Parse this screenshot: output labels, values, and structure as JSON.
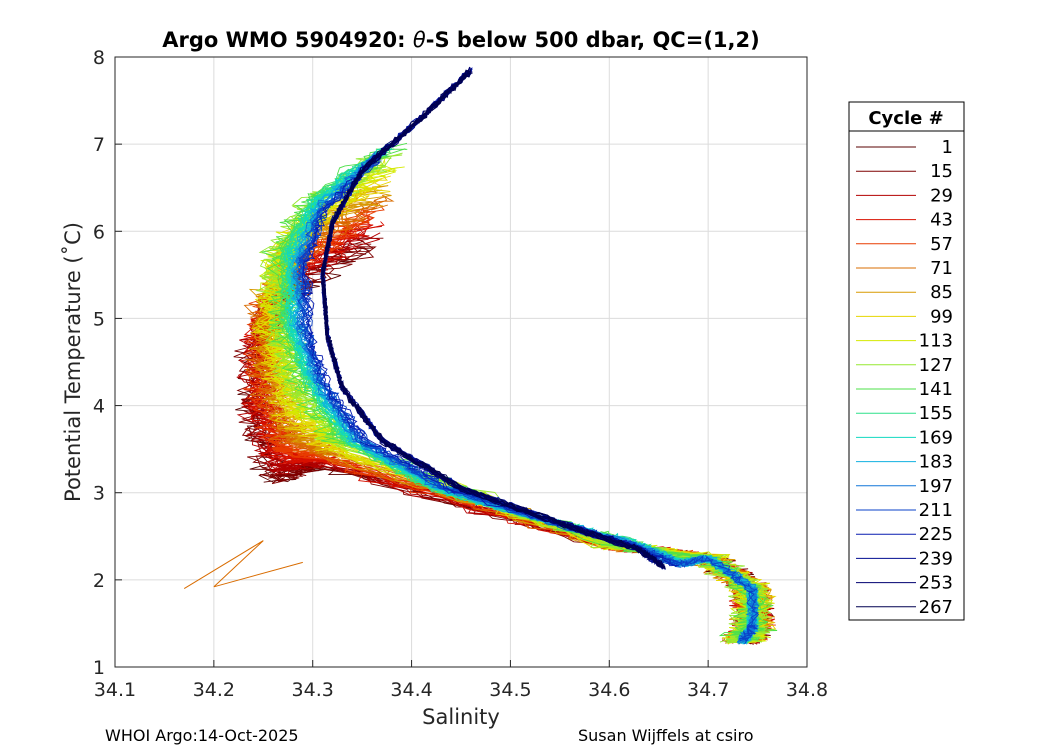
{
  "chart_data": {
    "type": "line",
    "title_prefix": "Argo WMO 5904920: ",
    "title_symbol": "θ",
    "title_suffix": "-S below 500 dbar,  QC=(1,2)",
    "xlabel": "Salinity",
    "ylabel": "Potential Temperature (˚C)",
    "xlim": [
      34.1,
      34.8
    ],
    "ylim": [
      1,
      8
    ],
    "xticks": [
      "34.1",
      "34.2",
      "34.3",
      "34.4",
      "34.5",
      "34.6",
      "34.7",
      "34.8"
    ],
    "yticks": [
      "1",
      "2",
      "3",
      "4",
      "5",
      "6",
      "7",
      "8"
    ],
    "grid": true,
    "legend": {
      "title": "Cycle #",
      "placement": "outside-right",
      "entries": [
        "1",
        "15",
        "29",
        "43",
        "57",
        "71",
        "85",
        "99",
        "113",
        "127",
        "141",
        "155",
        "169",
        "183",
        "197",
        "211",
        "225",
        "239",
        "253",
        "267"
      ],
      "colors": [
        "#5a0000",
        "#7f0000",
        "#b20000",
        "#d81000",
        "#e83c00",
        "#d96c00",
        "#d89a00",
        "#e6d600",
        "#d4ea00",
        "#96e830",
        "#4ee04a",
        "#2ee08a",
        "#10d8c0",
        "#10b0e0",
        "#1076d8",
        "#0a40c8",
        "#081cb0",
        "#000c90",
        "#000070",
        "#000050"
      ]
    },
    "series_summary": "Theta-S profiles for cycles 1-267, colored by cycle number (jet colormap, dark red = early, dark blue = late)",
    "envelope": {
      "late_cycles": [
        [
          34.46,
          7.85
        ],
        [
          34.41,
          7.3
        ],
        [
          34.35,
          6.7
        ],
        [
          34.32,
          6.1
        ],
        [
          34.31,
          5.5
        ],
        [
          34.315,
          4.8
        ],
        [
          34.33,
          4.2
        ],
        [
          34.37,
          3.6
        ],
        [
          34.45,
          3.05
        ],
        [
          34.55,
          2.65
        ],
        [
          34.63,
          2.35
        ],
        [
          34.655,
          2.15
        ]
      ],
      "mid_cycles": [
        [
          34.38,
          7.0
        ],
        [
          34.3,
          6.4
        ],
        [
          34.27,
          5.8
        ],
        [
          34.27,
          5.0
        ],
        [
          34.29,
          4.3
        ],
        [
          34.33,
          3.6
        ],
        [
          34.42,
          3.05
        ],
        [
          34.53,
          2.7
        ],
        [
          34.62,
          2.45
        ],
        [
          34.68,
          2.2
        ]
      ],
      "early_cycles": [
        [
          34.2,
          4.05
        ],
        [
          34.23,
          3.3
        ],
        [
          34.28,
          2.95
        ],
        [
          34.4,
          2.75
        ],
        [
          34.5,
          2.55
        ],
        [
          34.6,
          2.4
        ],
        [
          34.7,
          2.25
        ],
        [
          34.745,
          1.9
        ],
        [
          34.745,
          1.45
        ],
        [
          34.735,
          1.3
        ]
      ],
      "outliers": [
        [
          34.17,
          1.9
        ],
        [
          34.25,
          2.45
        ],
        [
          34.2,
          1.92
        ],
        [
          34.29,
          2.2
        ]
      ]
    }
  },
  "footer": {
    "left": "WHOI Argo:14-Oct-2025",
    "right": "Susan Wijffels at csiro"
  }
}
